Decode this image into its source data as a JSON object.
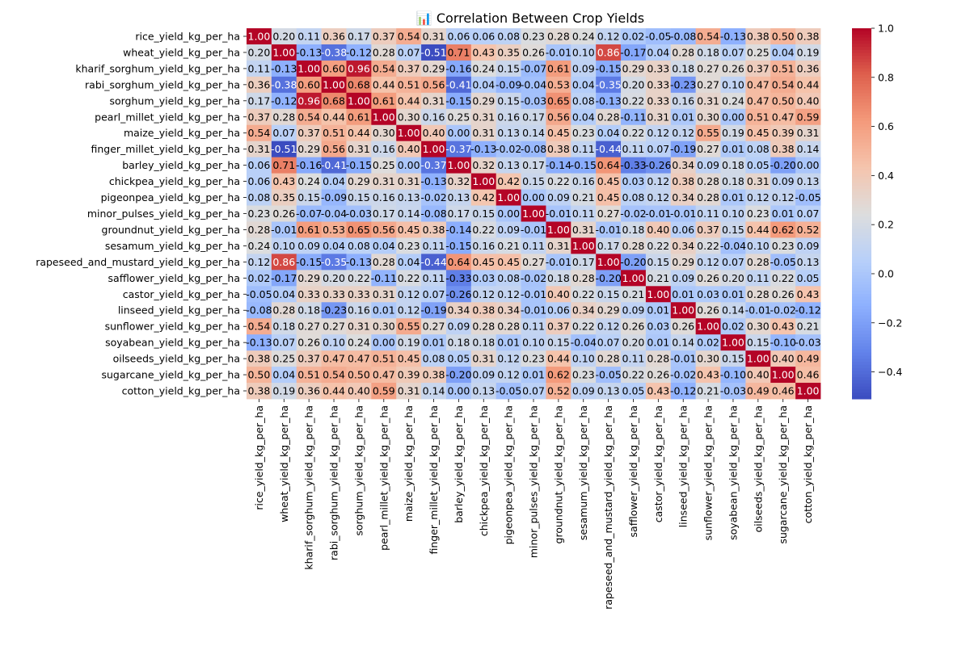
{
  "chart_data": {
    "type": "heatmap",
    "title": "📊 Correlation Between Crop Yields",
    "xlabel": "",
    "ylabel": "",
    "labels": [
      "rice_yield_kg_per_ha",
      "wheat_yield_kg_per_ha",
      "kharif_sorghum_yield_kg_per_ha",
      "rabi_sorghum_yield_kg_per_ha",
      "sorghum_yield_kg_per_ha",
      "pearl_millet_yield_kg_per_ha",
      "maize_yield_kg_per_ha",
      "finger_millet_yield_kg_per_ha",
      "barley_yield_kg_per_ha",
      "chickpea_yield_kg_per_ha",
      "pigeonpea_yield_kg_per_ha",
      "minor_pulses_yield_kg_per_ha",
      "groundnut_yield_kg_per_ha",
      "sesamum_yield_kg_per_ha",
      "rapeseed_and_mustard_yield_kg_per_ha",
      "safflower_yield_kg_per_ha",
      "castor_yield_kg_per_ha",
      "linseed_yield_kg_per_ha",
      "sunflower_yield_kg_per_ha",
      "soyabean_yield_kg_per_ha",
      "oilseeds_yield_kg_per_ha",
      "sugarcane_yield_kg_per_ha",
      "cotton_yield_kg_per_ha"
    ],
    "values": [
      [
        1.0,
        0.2,
        0.11,
        0.36,
        0.17,
        0.37,
        0.54,
        0.31,
        0.06,
        0.06,
        0.08,
        0.23,
        0.28,
        0.24,
        0.12,
        0.02,
        -0.05,
        -0.08,
        0.54,
        -0.13,
        0.38,
        0.5,
        0.38
      ],
      [
        0.2,
        1.0,
        -0.13,
        -0.38,
        -0.12,
        0.28,
        0.07,
        -0.51,
        0.71,
        0.43,
        0.35,
        0.26,
        -0.01,
        0.1,
        0.86,
        -0.17,
        0.04,
        0.28,
        0.18,
        0.07,
        0.25,
        0.04,
        0.19
      ],
      [
        0.11,
        -0.13,
        1.0,
        0.6,
        0.96,
        0.54,
        0.37,
        0.29,
        -0.16,
        0.24,
        0.15,
        -0.07,
        0.61,
        0.09,
        -0.15,
        0.29,
        0.33,
        0.18,
        0.27,
        0.26,
        0.37,
        0.51,
        0.36
      ],
      [
        0.36,
        -0.38,
        0.6,
        1.0,
        0.68,
        0.44,
        0.51,
        0.56,
        -0.41,
        0.04,
        -0.09,
        -0.04,
        0.53,
        0.04,
        -0.35,
        0.2,
        0.33,
        -0.23,
        0.27,
        0.1,
        0.47,
        0.54,
        0.44
      ],
      [
        0.17,
        -0.12,
        0.96,
        0.68,
        1.0,
        0.61,
        0.44,
        0.31,
        -0.15,
        0.29,
        0.15,
        -0.03,
        0.65,
        0.08,
        -0.13,
        0.22,
        0.33,
        0.16,
        0.31,
        0.24,
        0.47,
        0.5,
        0.4
      ],
      [
        0.37,
        0.28,
        0.54,
        0.44,
        0.61,
        1.0,
        0.3,
        0.16,
        0.25,
        0.31,
        0.16,
        0.17,
        0.56,
        0.04,
        0.28,
        -0.11,
        0.31,
        0.01,
        0.3,
        -0.0,
        0.51,
        0.47,
        0.59
      ],
      [
        0.54,
        0.07,
        0.37,
        0.51,
        0.44,
        0.3,
        1.0,
        0.4,
        0.0,
        0.31,
        0.13,
        0.14,
        0.45,
        0.23,
        0.04,
        0.22,
        0.12,
        0.12,
        0.55,
        0.19,
        0.45,
        0.39,
        0.31
      ],
      [
        0.31,
        -0.51,
        0.29,
        0.56,
        0.31,
        0.16,
        0.4,
        1.0,
        -0.37,
        -0.13,
        -0.02,
        -0.08,
        0.38,
        0.11,
        -0.44,
        0.11,
        0.07,
        -0.19,
        0.27,
        0.01,
        0.08,
        0.38,
        0.14
      ],
      [
        0.06,
        0.71,
        -0.16,
        -0.41,
        -0.15,
        0.25,
        0.0,
        -0.37,
        1.0,
        0.32,
        0.13,
        0.17,
        -0.14,
        -0.15,
        0.64,
        -0.33,
        -0.26,
        0.34,
        0.09,
        0.18,
        0.05,
        -0.2,
        -0.0
      ],
      [
        0.06,
        0.43,
        0.24,
        0.04,
        0.29,
        0.31,
        0.31,
        -0.13,
        0.32,
        1.0,
        0.42,
        0.15,
        0.22,
        0.16,
        0.45,
        0.03,
        0.12,
        0.38,
        0.28,
        0.18,
        0.31,
        0.09,
        0.13
      ],
      [
        0.08,
        0.35,
        0.15,
        -0.09,
        0.15,
        0.16,
        0.13,
        -0.02,
        0.13,
        0.42,
        1.0,
        -0.0,
        0.09,
        0.21,
        0.45,
        0.08,
        0.12,
        0.34,
        0.28,
        0.01,
        0.12,
        0.12,
        -0.05
      ],
      [
        0.23,
        0.26,
        -0.07,
        -0.04,
        -0.03,
        0.17,
        0.14,
        -0.08,
        0.17,
        0.15,
        -0.0,
        1.0,
        -0.01,
        0.11,
        0.27,
        -0.02,
        -0.01,
        -0.01,
        0.11,
        0.1,
        0.23,
        0.01,
        0.07
      ],
      [
        0.28,
        -0.01,
        0.61,
        0.53,
        0.65,
        0.56,
        0.45,
        0.38,
        -0.14,
        0.22,
        0.09,
        -0.01,
        1.0,
        0.31,
        -0.01,
        0.18,
        0.4,
        0.06,
        0.37,
        0.15,
        0.44,
        0.62,
        0.52
      ],
      [
        0.24,
        0.1,
        0.09,
        0.04,
        0.08,
        0.04,
        0.23,
        0.11,
        -0.15,
        0.16,
        0.21,
        0.11,
        0.31,
        1.0,
        0.17,
        0.28,
        0.22,
        0.34,
        0.22,
        -0.04,
        0.1,
        0.23,
        0.09
      ],
      [
        0.12,
        0.86,
        -0.15,
        -0.35,
        -0.13,
        0.28,
        0.04,
        -0.44,
        0.64,
        0.45,
        0.45,
        0.27,
        -0.01,
        0.17,
        1.0,
        -0.2,
        0.15,
        0.29,
        0.12,
        0.07,
        0.28,
        -0.05,
        0.13
      ],
      [
        0.02,
        -0.17,
        0.29,
        0.2,
        0.22,
        -0.11,
        0.22,
        0.11,
        -0.33,
        0.03,
        0.08,
        -0.02,
        0.18,
        0.28,
        -0.2,
        1.0,
        0.21,
        0.09,
        0.26,
        0.2,
        0.11,
        0.22,
        0.05
      ],
      [
        -0.05,
        0.04,
        0.33,
        0.33,
        0.33,
        0.31,
        0.12,
        0.07,
        -0.26,
        0.12,
        0.12,
        -0.01,
        0.4,
        0.22,
        0.15,
        0.21,
        1.0,
        0.01,
        0.03,
        0.01,
        0.28,
        0.26,
        0.43
      ],
      [
        -0.08,
        0.28,
        0.18,
        -0.23,
        0.16,
        0.01,
        0.12,
        -0.19,
        0.34,
        0.38,
        0.34,
        -0.01,
        0.06,
        0.34,
        0.29,
        0.09,
        0.01,
        1.0,
        0.26,
        0.14,
        -0.01,
        -0.02,
        -0.12
      ],
      [
        0.54,
        0.18,
        0.27,
        0.27,
        0.31,
        0.3,
        0.55,
        0.27,
        0.09,
        0.28,
        0.28,
        0.11,
        0.37,
        0.22,
        0.12,
        0.26,
        0.03,
        0.26,
        1.0,
        0.02,
        0.3,
        0.43,
        0.21
      ],
      [
        -0.13,
        0.07,
        0.26,
        0.1,
        0.24,
        -0.0,
        0.19,
        0.01,
        0.18,
        0.18,
        0.01,
        0.1,
        0.15,
        -0.04,
        0.07,
        0.2,
        0.01,
        0.14,
        0.02,
        1.0,
        0.15,
        -0.1,
        -0.03
      ],
      [
        0.38,
        0.25,
        0.37,
        0.47,
        0.47,
        0.51,
        0.45,
        0.08,
        0.05,
        0.31,
        0.12,
        0.23,
        0.44,
        0.1,
        0.28,
        0.11,
        0.28,
        -0.01,
        0.3,
        0.15,
        1.0,
        0.4,
        0.49
      ],
      [
        0.5,
        0.04,
        0.51,
        0.54,
        0.5,
        0.47,
        0.39,
        0.38,
        -0.2,
        0.09,
        0.12,
        0.01,
        0.62,
        0.23,
        -0.05,
        0.22,
        0.26,
        -0.02,
        0.43,
        -0.1,
        0.4,
        1.0,
        0.46
      ],
      [
        0.38,
        0.19,
        0.36,
        0.44,
        0.4,
        0.59,
        0.31,
        0.14,
        -0.0,
        0.13,
        -0.05,
        0.07,
        0.52,
        0.09,
        0.13,
        0.05,
        0.43,
        -0.12,
        0.21,
        -0.03,
        0.49,
        0.46,
        1.0
      ]
    ],
    "colorscale": "coolwarm",
    "vmin": -0.51,
    "vmax": 1.0,
    "colorbar_ticks": [
      1.0,
      0.8,
      0.6,
      0.4,
      0.2,
      0.0,
      -0.2,
      -0.4
    ],
    "colorbar_tick_labels": [
      "1.0",
      "0.8",
      "0.6",
      "0.4",
      "0.2",
      "0.0",
      "−0.2",
      "−0.4"
    ],
    "annotations": "cell values, 2 decimals",
    "legend": "colorbar right"
  }
}
